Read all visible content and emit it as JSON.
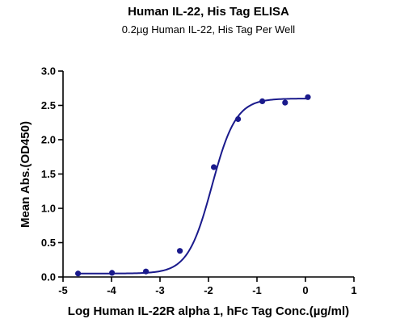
{
  "chart_data": {
    "type": "scatter",
    "title": "Human IL-22, His Tag ELISA",
    "subtitle": "0.2µg Human IL-22, His Tag Per Well",
    "xlabel": "Log Human IL-22R alpha 1, hFc Tag Conc.(µg/ml)",
    "ylabel": "Mean Abs.(OD450)",
    "xlim": [
      -5,
      1
    ],
    "ylim": [
      0,
      3.0
    ],
    "xticks": [
      -5,
      -4,
      -3,
      -2,
      -1,
      0,
      1
    ],
    "yticks": [
      0.0,
      0.5,
      1.0,
      1.5,
      2.0,
      2.5,
      3.0
    ],
    "xtick_labels": [
      "-5",
      "-4",
      "-3",
      "-2",
      "-1",
      "0",
      "1"
    ],
    "ytick_labels": [
      "0.0",
      "0.5",
      "1.0",
      "1.5",
      "2.0",
      "2.5",
      "3.0"
    ],
    "grid": false,
    "legend": "none",
    "series": [
      {
        "color": "#1a1a8c",
        "x": [
          -4.69,
          -3.99,
          -3.29,
          -2.59,
          -1.89,
          -1.39,
          -0.89,
          -0.42,
          0.05
        ],
        "y": [
          0.05,
          0.06,
          0.08,
          0.38,
          1.6,
          2.3,
          2.56,
          2.54,
          2.62
        ],
        "fit": {
          "model": "4PL",
          "bottom": 0.05,
          "top": 2.6,
          "logEC50": -1.93,
          "hill": 1.75
        }
      }
    ]
  }
}
